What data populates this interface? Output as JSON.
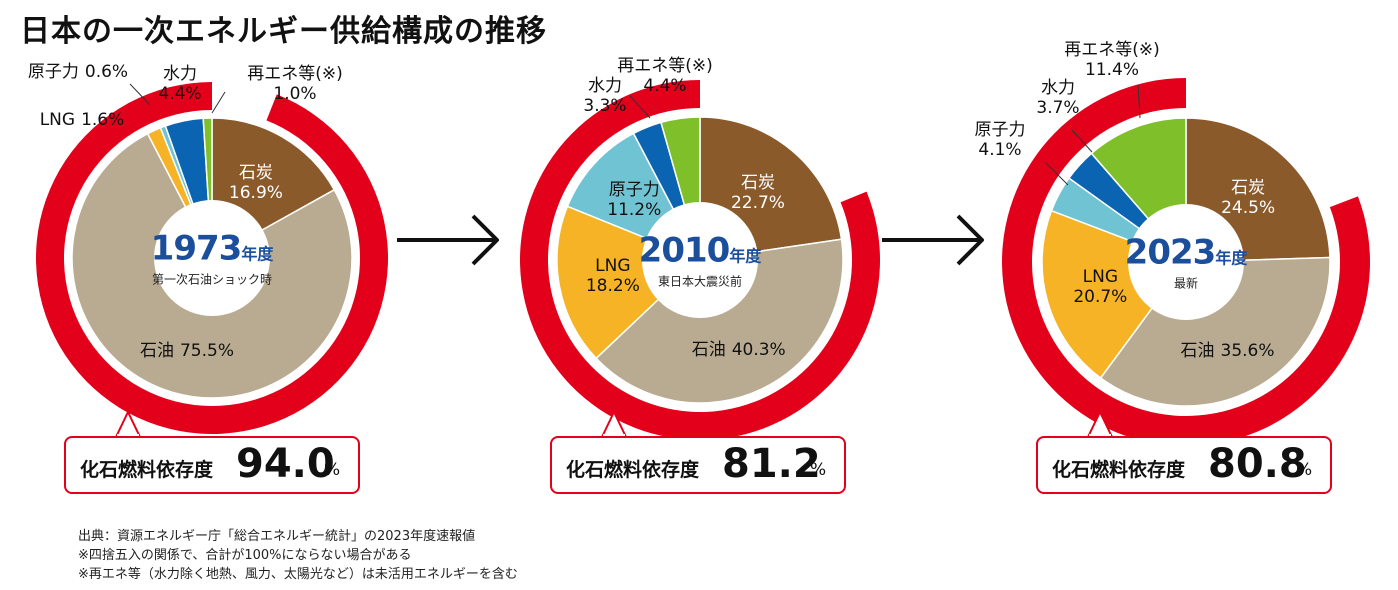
{
  "title": "日本の一次エネルギー供給構成の推移",
  "chart_data": [
    {
      "type": "pie",
      "year": "1973",
      "year_suffix": "年度",
      "subtitle": "第一次石油ショック時",
      "slices": [
        {
          "name": "石炭",
          "value": 16.9,
          "label": "16.9%",
          "color": "#8b5a2b"
        },
        {
          "name": "石油",
          "value": 75.5,
          "label": "75.5%",
          "color": "#b9ab92"
        },
        {
          "name": "LNG",
          "value": 1.6,
          "label": "1.6%",
          "color": "#f5b325"
        },
        {
          "name": "原子力",
          "value": 0.6,
          "label": "0.6%",
          "color": "#6fc3d3"
        },
        {
          "name": "水力",
          "value": 4.4,
          "label": "4.4%",
          "color": "#0b64b2"
        },
        {
          "name": "再エネ等(※)",
          "value": 1.0,
          "label": "1.0%",
          "color": "#7fbf2a"
        }
      ],
      "fossil_label": "化石燃料依存度",
      "fossil_value": "94.0",
      "fossil_unit": "%",
      "fossil_share": 94.0
    },
    {
      "type": "pie",
      "year": "2010",
      "year_suffix": "年度",
      "subtitle": "東日本大震災前",
      "slices": [
        {
          "name": "石炭",
          "value": 22.7,
          "label": "22.7%",
          "color": "#8b5a2b"
        },
        {
          "name": "石油",
          "value": 40.3,
          "label": "40.3%",
          "color": "#b9ab92"
        },
        {
          "name": "LNG",
          "value": 18.2,
          "label": "18.2%",
          "color": "#f5b325"
        },
        {
          "name": "原子力",
          "value": 11.2,
          "label": "11.2%",
          "color": "#6fc3d3"
        },
        {
          "name": "水力",
          "value": 3.3,
          "label": "3.3%",
          "color": "#0b64b2"
        },
        {
          "name": "再エネ等(※)",
          "value": 4.4,
          "label": "4.4%",
          "color": "#7fbf2a"
        }
      ],
      "fossil_label": "化石燃料依存度",
      "fossil_value": "81.2",
      "fossil_unit": "%",
      "fossil_share": 81.2
    },
    {
      "type": "pie",
      "year": "2023",
      "year_suffix": "年度",
      "subtitle": "最新",
      "slices": [
        {
          "name": "石炭",
          "value": 24.5,
          "label": "24.5%",
          "color": "#8b5a2b"
        },
        {
          "name": "石油",
          "value": 35.6,
          "label": "35.6%",
          "color": "#b9ab92"
        },
        {
          "name": "LNG",
          "value": 20.7,
          "label": "20.7%",
          "color": "#f5b325"
        },
        {
          "name": "原子力",
          "value": 4.1,
          "label": "4.1%",
          "color": "#6fc3d3"
        },
        {
          "name": "水力",
          "value": 3.7,
          "label": "3.7%",
          "color": "#0b64b2"
        },
        {
          "name": "再エネ等(※)",
          "value": 11.4,
          "label": "11.4%",
          "color": "#7fbf2a"
        }
      ],
      "fossil_label": "化石燃料依存度",
      "fossil_value": "80.8",
      "fossil_unit": "%",
      "fossil_share": 80.8
    }
  ],
  "colors": {
    "fossil_ring": "#e3001b",
    "year_text": "#1b4f9c"
  },
  "notes": [
    "出典：資源エネルギー庁「総合エネルギー統計」の2023年度速報値",
    "※四捨五入の関係で、合計が100%にならない場合がある",
    "※再エネ等（水力除く地熱、風力、太陽光など）は未活用エネルギーを含む"
  ]
}
